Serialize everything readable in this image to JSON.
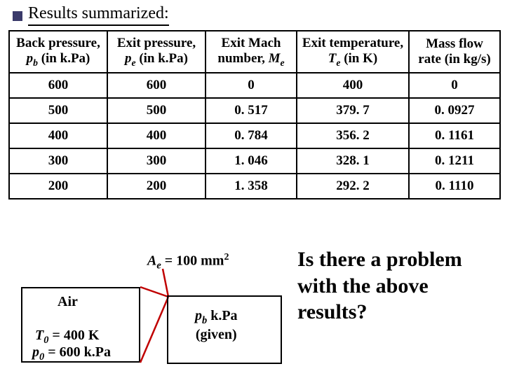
{
  "title": "Results summarized:",
  "table": {
    "columns": [
      {
        "line1": "Back pressure,",
        "sym": "p",
        "sub": "b",
        "unit": " (in k.Pa)"
      },
      {
        "line1": "Exit pressure,",
        "sym": "p",
        "sub": "e",
        "unit": " (in k.Pa)"
      },
      {
        "line1": "Exit Mach",
        "line2a": "number, ",
        "sym": "M",
        "sub": "e",
        "unit": ""
      },
      {
        "line1": "Exit temperature,",
        "sym": "T",
        "sub": "e",
        "unit": " (in K)"
      },
      {
        "line1": "Mass flow",
        "line2a": "rate (in kg/s)",
        "sym": "",
        "sub": "",
        "unit": ""
      }
    ],
    "col_widths": [
      "140px",
      "140px",
      "130px",
      "160px",
      "130px"
    ],
    "rows": [
      [
        "600",
        "600",
        "0",
        "400",
        "0"
      ],
      [
        "500",
        "500",
        "0. 517",
        "379. 7",
        "0. 0927"
      ],
      [
        "400",
        "400",
        "0. 784",
        "356. 2",
        "0. 1161"
      ],
      [
        "300",
        "300",
        "1. 046",
        "328. 1",
        "0. 1211"
      ],
      [
        "200",
        "200",
        "1. 358",
        "292. 2",
        "0. 1110"
      ]
    ]
  },
  "diagram": {
    "area_sym": "A",
    "area_sub": "e",
    "area_eq": " = 100 mm",
    "area_sup": "2",
    "air": "Air",
    "T_sym": "T",
    "T_sub": "0",
    "T_val": " = 400 K",
    "p_sym": "p",
    "p_sub": "0",
    "p_val": " = 600 k.Pa",
    "pb_sym": "p",
    "pb_sub": "b",
    "pb_unit": " k.Pa",
    "pb_line2": "(given)"
  },
  "question": "Is there a problem with the above results?",
  "colors": {
    "nozzle_line": "#c00000",
    "bullet": "#3a3a6a"
  }
}
